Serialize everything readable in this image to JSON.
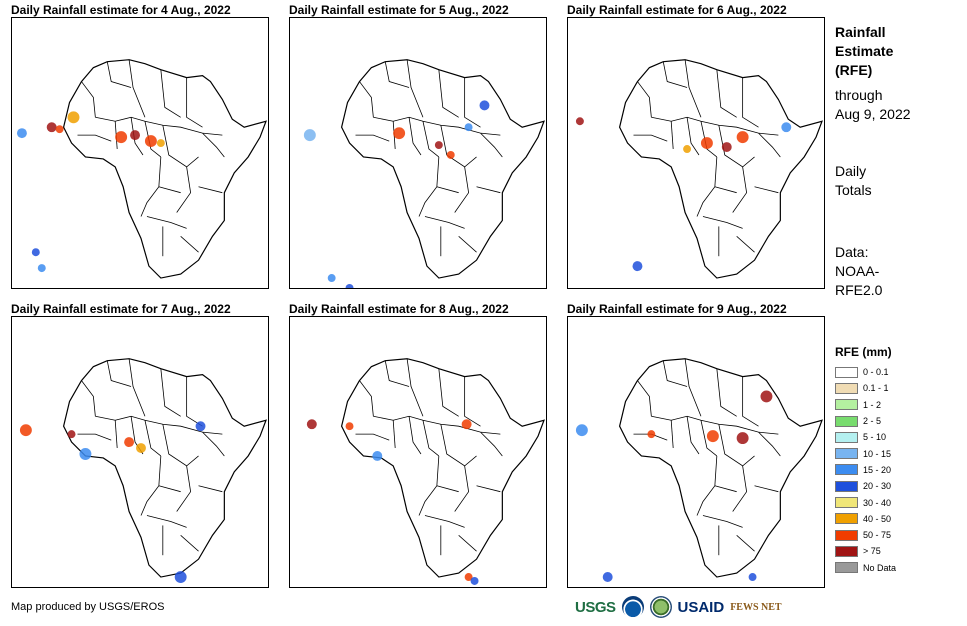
{
  "panels": [
    {
      "title": "Daily Rainfall estimate for 4 Aug., 2022"
    },
    {
      "title": "Daily Rainfall estimate for 5 Aug., 2022"
    },
    {
      "title": "Daily Rainfall estimate for 6 Aug., 2022"
    },
    {
      "title": "Daily Rainfall estimate for 7 Aug., 2022"
    },
    {
      "title": "Daily Rainfall estimate for 8 Aug., 2022"
    },
    {
      "title": "Daily Rainfall estimate for 9 Aug., 2022"
    }
  ],
  "sidebar": {
    "title_lines": [
      "Rainfall",
      "Estimate",
      "(RFE)"
    ],
    "through_lines": [
      "through",
      "Aug 9, 2022"
    ],
    "daily_lines": [
      "Daily",
      "Totals"
    ],
    "data_lines": [
      "Data:",
      "NOAA-",
      "RFE2.0"
    ]
  },
  "legend": {
    "title": "RFE (mm)",
    "items": [
      {
        "label": "0 - 0.1",
        "color": "#ffffff"
      },
      {
        "label": "0.1 - 1",
        "color": "#f0dcb4"
      },
      {
        "label": "1 - 2",
        "color": "#b4f0a0"
      },
      {
        "label": "2 - 5",
        "color": "#78dc6e"
      },
      {
        "label": "5 - 10",
        "color": "#b4f0f0"
      },
      {
        "label": "10 - 15",
        "color": "#78b4f0"
      },
      {
        "label": "15 - 20",
        "color": "#3c8cf0"
      },
      {
        "label": "20 - 30",
        "color": "#1e50dc"
      },
      {
        "label": "30 - 40",
        "color": "#f0e678"
      },
      {
        "label": "40 - 50",
        "color": "#f0a000"
      },
      {
        "label": "50 - 75",
        "color": "#f03c00"
      },
      {
        "label": "> 75",
        "color": "#a01414"
      },
      {
        "label": "No Data",
        "color": "#999999"
      }
    ]
  },
  "footer": {
    "credit": "Map produced by USGS/EROS",
    "logos": [
      "USGS",
      "NOAA",
      "DOI",
      "USAID",
      "FEWS NET"
    ]
  }
}
